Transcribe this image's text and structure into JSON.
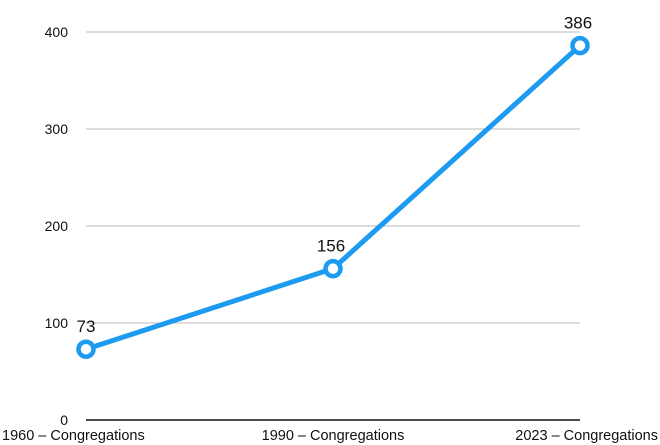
{
  "chart_data": {
    "type": "line",
    "title": "",
    "xlabel": "",
    "ylabel": "",
    "categories": [
      "1960 – Congregations",
      "1990 – Congregations",
      "2023 – Congregations"
    ],
    "series": [
      {
        "values": [
          73,
          156,
          386
        ],
        "color": "#1d9bf0"
      }
    ],
    "ylim": [
      0,
      400
    ],
    "yticks": [
      0,
      100,
      200,
      300,
      400
    ],
    "grid": true,
    "legend": "none"
  }
}
